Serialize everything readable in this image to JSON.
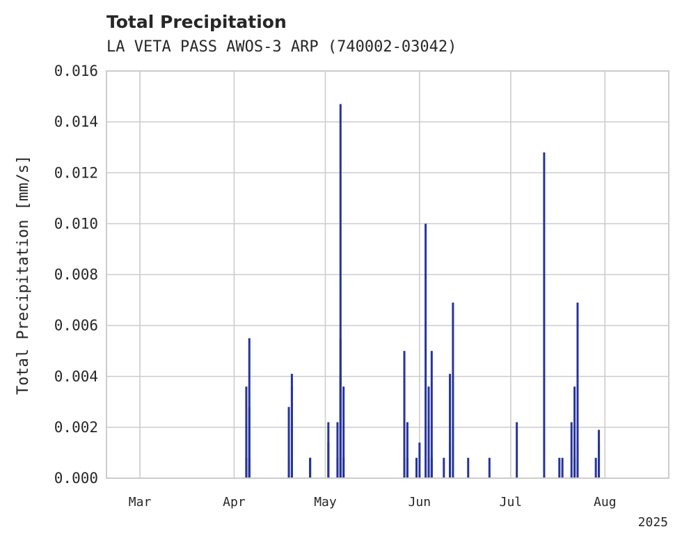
{
  "chart_data": {
    "type": "bar",
    "title": "Total Precipitation",
    "subtitle": "LA VETA PASS AWOS-3 ARP (740002-03042)",
    "xlabel": "",
    "ylabel": "Total Precipitation [mm/s]",
    "ylim": [
      0,
      0.016
    ],
    "xlim": [
      "2025-02-18",
      "2025-08-22"
    ],
    "yticks": [
      "0.000",
      "0.002",
      "0.004",
      "0.006",
      "0.008",
      "0.010",
      "0.012",
      "0.014",
      "0.016"
    ],
    "xticks": [
      {
        "date": "2025-03-01",
        "label": "Mar"
      },
      {
        "date": "2025-04-01",
        "label": "Apr"
      },
      {
        "date": "2025-05-01",
        "label": "May"
      },
      {
        "date": "2025-06-01",
        "label": "Jun"
      },
      {
        "date": "2025-07-01",
        "label": "Jul"
      },
      {
        "date": "2025-08-01",
        "label": "Aug"
      }
    ],
    "year_label": "2025",
    "grid": true,
    "color": "#26349a",
    "series": [
      {
        "x": [
          "2025-04-05",
          "2025-04-05",
          "2025-04-06",
          "2025-04-06",
          "2025-04-06",
          "2025-04-19",
          "2025-04-19",
          "2025-04-20",
          "2025-04-20",
          "2025-04-26",
          "2025-04-26",
          "2025-05-02",
          "2025-05-02",
          "2025-05-05",
          "2025-05-05",
          "2025-05-06",
          "2025-05-06",
          "2025-05-06",
          "2025-05-07",
          "2025-05-07",
          "2025-05-27",
          "2025-05-27",
          "2025-05-28",
          "2025-05-28",
          "2025-05-31",
          "2025-06-01",
          "2025-06-03",
          "2025-06-04",
          "2025-06-04",
          "2025-06-05",
          "2025-06-05",
          "2025-06-09",
          "2025-06-11",
          "2025-06-11",
          "2025-06-12",
          "2025-06-17",
          "2025-06-24",
          "2025-07-03",
          "2025-07-12",
          "2025-07-17",
          "2025-07-18",
          "2025-07-21",
          "2025-07-22",
          "2025-07-22",
          "2025-07-23",
          "2025-07-23",
          "2025-07-29",
          "2025-07-30",
          "2025-07-30"
        ],
        "values": [
          0.0008,
          0.0036,
          0.0055,
          0.0028,
          0.0008,
          0.0028,
          0.0008,
          0.0041,
          0.0036,
          0.0008,
          0.0008,
          0.0022,
          0.0014,
          0.0008,
          0.0022,
          0.0041,
          0.0055,
          0.0147,
          0.0036,
          0.0008,
          0.0008,
          0.005,
          0.0022,
          0.0008,
          0.0008,
          0.0014,
          0.01,
          0.0036,
          0.0022,
          0.0008,
          0.005,
          0.0008,
          0.0041,
          0.0014,
          0.0069,
          0.0008,
          0.0008,
          0.0022,
          0.0128,
          0.0008,
          0.0008,
          0.0022,
          0.0036,
          0.0008,
          0.0069,
          0.0014,
          0.0008,
          0.0014,
          0.0019
        ]
      }
    ]
  }
}
